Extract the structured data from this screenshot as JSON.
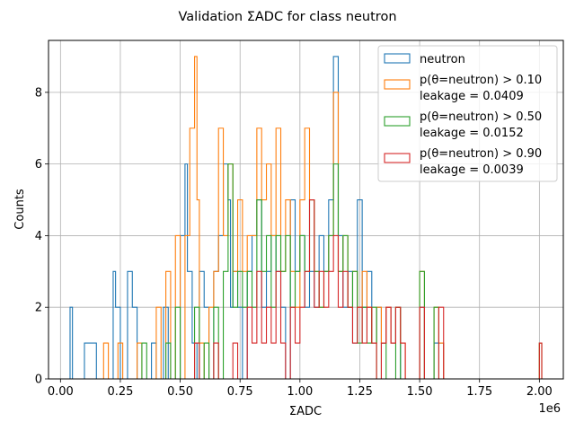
{
  "chart_data": {
    "type": "histogram-step",
    "title": "Validation ΣADC for class neutron",
    "xlabel": "ΣADC",
    "ylabel": "Counts",
    "x_offset_label": "1e6",
    "xlim": [
      -0.05,
      2.1
    ],
    "ylim": [
      0,
      9.45
    ],
    "xticks": [
      0.0,
      0.25,
      0.5,
      0.75,
      1.0,
      1.25,
      1.5,
      1.75,
      2.0
    ],
    "xtick_labels": [
      "0.00",
      "0.25",
      "0.50",
      "0.75",
      "1.00",
      "1.25",
      "1.50",
      "1.75",
      "2.00"
    ],
    "yticks": [
      0,
      2,
      4,
      6,
      8
    ],
    "ytick_labels": [
      "0",
      "2",
      "4",
      "6",
      "8"
    ],
    "grid": true,
    "legend_position": "top-right",
    "series": [
      {
        "name": "neutron",
        "color": "#1f77b4",
        "bins": [
          [
            0.04,
            0.05,
            2
          ],
          [
            0.1,
            0.15,
            1
          ],
          [
            0.22,
            0.23,
            3
          ],
          [
            0.23,
            0.25,
            2
          ],
          [
            0.28,
            0.3,
            3
          ],
          [
            0.3,
            0.32,
            2
          ],
          [
            0.38,
            0.4,
            1
          ],
          [
            0.43,
            0.45,
            2
          ],
          [
            0.5,
            0.52,
            4
          ],
          [
            0.52,
            0.53,
            6
          ],
          [
            0.53,
            0.55,
            3
          ],
          [
            0.55,
            0.57,
            1
          ],
          [
            0.58,
            0.6,
            3
          ],
          [
            0.6,
            0.62,
            2
          ],
          [
            0.64,
            0.66,
            3
          ],
          [
            0.66,
            0.68,
            4
          ],
          [
            0.68,
            0.7,
            6
          ],
          [
            0.7,
            0.71,
            5
          ],
          [
            0.71,
            0.72,
            2
          ],
          [
            0.72,
            0.74,
            3
          ],
          [
            0.74,
            0.76,
            2
          ],
          [
            0.78,
            0.8,
            3
          ],
          [
            0.8,
            0.82,
            4
          ],
          [
            0.82,
            0.84,
            5
          ],
          [
            0.84,
            0.86,
            2
          ],
          [
            0.86,
            0.88,
            3
          ],
          [
            0.88,
            0.9,
            4
          ],
          [
            0.9,
            0.92,
            3
          ],
          [
            0.92,
            0.94,
            2
          ],
          [
            0.96,
            0.98,
            5
          ],
          [
            0.98,
            1.0,
            3
          ],
          [
            1.0,
            1.02,
            4
          ],
          [
            1.02,
            1.04,
            2
          ],
          [
            1.04,
            1.06,
            3
          ],
          [
            1.06,
            1.08,
            2
          ],
          [
            1.08,
            1.1,
            4
          ],
          [
            1.1,
            1.12,
            3
          ],
          [
            1.12,
            1.14,
            5
          ],
          [
            1.14,
            1.16,
            9
          ],
          [
            1.16,
            1.18,
            4
          ],
          [
            1.18,
            1.2,
            2
          ],
          [
            1.2,
            1.22,
            3
          ],
          [
            1.22,
            1.24,
            1
          ],
          [
            1.24,
            1.26,
            5
          ],
          [
            1.26,
            1.28,
            2
          ],
          [
            1.28,
            1.3,
            3
          ],
          [
            1.3,
            1.32,
            1
          ],
          [
            1.32,
            1.34,
            2
          ],
          [
            1.34,
            1.36,
            1
          ],
          [
            1.36,
            1.38,
            2
          ],
          [
            1.38,
            1.4,
            1
          ],
          [
            1.4,
            1.42,
            2
          ],
          [
            1.5,
            1.52,
            2
          ],
          [
            1.56,
            1.58,
            1
          ],
          [
            1.58,
            1.6,
            1
          ]
        ]
      },
      {
        "name": "p(θ=neutron) > 0.10\nleakage = 0.0409",
        "legend_lines": [
          "p(θ=neutron) > 0.10",
          "leakage = 0.0409"
        ],
        "color": "#ff7f0e",
        "bins": [
          [
            0.18,
            0.2,
            1
          ],
          [
            0.24,
            0.26,
            1
          ],
          [
            0.32,
            0.34,
            1
          ],
          [
            0.4,
            0.42,
            2
          ],
          [
            0.44,
            0.46,
            3
          ],
          [
            0.48,
            0.5,
            4
          ],
          [
            0.52,
            0.54,
            4
          ],
          [
            0.54,
            0.56,
            7
          ],
          [
            0.56,
            0.57,
            9
          ],
          [
            0.57,
            0.58,
            5
          ],
          [
            0.58,
            0.6,
            1
          ],
          [
            0.62,
            0.64,
            2
          ],
          [
            0.64,
            0.66,
            3
          ],
          [
            0.66,
            0.68,
            7
          ],
          [
            0.68,
            0.7,
            4
          ],
          [
            0.7,
            0.72,
            6
          ],
          [
            0.72,
            0.74,
            3
          ],
          [
            0.74,
            0.76,
            5
          ],
          [
            0.76,
            0.78,
            3
          ],
          [
            0.78,
            0.8,
            4
          ],
          [
            0.8,
            0.82,
            4
          ],
          [
            0.82,
            0.84,
            7
          ],
          [
            0.84,
            0.86,
            5
          ],
          [
            0.86,
            0.88,
            6
          ],
          [
            0.88,
            0.9,
            4
          ],
          [
            0.9,
            0.92,
            7
          ],
          [
            0.92,
            0.94,
            3
          ],
          [
            0.94,
            0.96,
            5
          ],
          [
            0.96,
            0.98,
            3
          ],
          [
            0.98,
            1.0,
            2
          ],
          [
            1.0,
            1.02,
            5
          ],
          [
            1.02,
            1.04,
            7
          ],
          [
            1.04,
            1.06,
            5
          ],
          [
            1.06,
            1.08,
            3
          ],
          [
            1.08,
            1.1,
            2
          ],
          [
            1.1,
            1.12,
            3
          ],
          [
            1.12,
            1.14,
            4
          ],
          [
            1.14,
            1.16,
            8
          ],
          [
            1.16,
            1.18,
            3
          ],
          [
            1.18,
            1.2,
            4
          ],
          [
            1.2,
            1.22,
            2
          ],
          [
            1.22,
            1.24,
            3
          ],
          [
            1.24,
            1.26,
            2
          ],
          [
            1.26,
            1.28,
            3
          ],
          [
            1.28,
            1.3,
            2
          ],
          [
            1.3,
            1.32,
            1
          ],
          [
            1.32,
            1.34,
            2
          ],
          [
            1.34,
            1.36,
            1
          ],
          [
            1.36,
            1.38,
            2
          ],
          [
            1.38,
            1.4,
            1
          ],
          [
            1.4,
            1.42,
            2
          ],
          [
            1.42,
            1.44,
            1
          ],
          [
            1.5,
            1.52,
            3
          ],
          [
            1.56,
            1.58,
            2
          ],
          [
            1.58,
            1.6,
            1
          ],
          [
            2.0,
            2.01,
            1
          ]
        ]
      },
      {
        "name": "p(θ=neutron) > 0.50\nleakage = 0.0152",
        "legend_lines": [
          "p(θ=neutron) > 0.50",
          "leakage = 0.0152"
        ],
        "color": "#2ca02c",
        "bins": [
          [
            0.34,
            0.36,
            1
          ],
          [
            0.44,
            0.46,
            1
          ],
          [
            0.48,
            0.5,
            2
          ],
          [
            0.56,
            0.58,
            2
          ],
          [
            0.6,
            0.62,
            1
          ],
          [
            0.64,
            0.66,
            2
          ],
          [
            0.68,
            0.7,
            3
          ],
          [
            0.7,
            0.72,
            6
          ],
          [
            0.72,
            0.74,
            2
          ],
          [
            0.74,
            0.76,
            3
          ],
          [
            0.76,
            0.78,
            2
          ],
          [
            0.78,
            0.8,
            3
          ],
          [
            0.8,
            0.82,
            2
          ],
          [
            0.82,
            0.84,
            5
          ],
          [
            0.84,
            0.86,
            3
          ],
          [
            0.86,
            0.88,
            4
          ],
          [
            0.88,
            0.9,
            2
          ],
          [
            0.9,
            0.92,
            4
          ],
          [
            0.92,
            0.94,
            3
          ],
          [
            0.94,
            0.96,
            4
          ],
          [
            0.96,
            0.98,
            2
          ],
          [
            0.98,
            1.0,
            3
          ],
          [
            1.0,
            1.02,
            4
          ],
          [
            1.02,
            1.04,
            3
          ],
          [
            1.04,
            1.06,
            5
          ],
          [
            1.06,
            1.08,
            3
          ],
          [
            1.08,
            1.1,
            2
          ],
          [
            1.1,
            1.12,
            3
          ],
          [
            1.12,
            1.14,
            4
          ],
          [
            1.14,
            1.16,
            6
          ],
          [
            1.16,
            1.18,
            3
          ],
          [
            1.18,
            1.2,
            4
          ],
          [
            1.2,
            1.22,
            2
          ],
          [
            1.22,
            1.24,
            3
          ],
          [
            1.24,
            1.26,
            1
          ],
          [
            1.26,
            1.28,
            2
          ],
          [
            1.28,
            1.3,
            1
          ],
          [
            1.3,
            1.32,
            2
          ],
          [
            1.34,
            1.36,
            1
          ],
          [
            1.4,
            1.42,
            2
          ],
          [
            1.5,
            1.52,
            3
          ],
          [
            1.56,
            1.58,
            2
          ],
          [
            2.0,
            2.01,
            1
          ]
        ]
      },
      {
        "name": "p(θ=neutron) > 0.90\nleakage = 0.0039",
        "legend_lines": [
          "p(θ=neutron) > 0.90",
          "leakage = 0.0039"
        ],
        "color": "#d62728",
        "bins": [
          [
            0.56,
            0.58,
            1
          ],
          [
            0.64,
            0.66,
            1
          ],
          [
            0.72,
            0.74,
            1
          ],
          [
            0.78,
            0.8,
            2
          ],
          [
            0.8,
            0.82,
            1
          ],
          [
            0.82,
            0.84,
            3
          ],
          [
            0.84,
            0.86,
            1
          ],
          [
            0.86,
            0.88,
            2
          ],
          [
            0.88,
            0.9,
            1
          ],
          [
            0.9,
            0.92,
            3
          ],
          [
            0.92,
            0.94,
            1
          ],
          [
            0.96,
            0.98,
            2
          ],
          [
            0.98,
            1.0,
            1
          ],
          [
            1.0,
            1.02,
            2
          ],
          [
            1.02,
            1.04,
            3
          ],
          [
            1.04,
            1.06,
            5
          ],
          [
            1.06,
            1.08,
            2
          ],
          [
            1.08,
            1.1,
            3
          ],
          [
            1.1,
            1.12,
            2
          ],
          [
            1.12,
            1.14,
            3
          ],
          [
            1.14,
            1.16,
            4
          ],
          [
            1.16,
            1.18,
            2
          ],
          [
            1.18,
            1.2,
            3
          ],
          [
            1.2,
            1.22,
            2
          ],
          [
            1.22,
            1.24,
            1
          ],
          [
            1.24,
            1.26,
            2
          ],
          [
            1.26,
            1.28,
            1
          ],
          [
            1.28,
            1.3,
            2
          ],
          [
            1.3,
            1.32,
            1
          ],
          [
            1.34,
            1.36,
            1
          ],
          [
            1.36,
            1.38,
            2
          ],
          [
            1.38,
            1.4,
            1
          ],
          [
            1.4,
            1.42,
            2
          ],
          [
            1.42,
            1.44,
            1
          ],
          [
            1.5,
            1.52,
            2
          ],
          [
            1.58,
            1.6,
            2
          ],
          [
            2.0,
            2.01,
            1
          ]
        ]
      }
    ]
  }
}
